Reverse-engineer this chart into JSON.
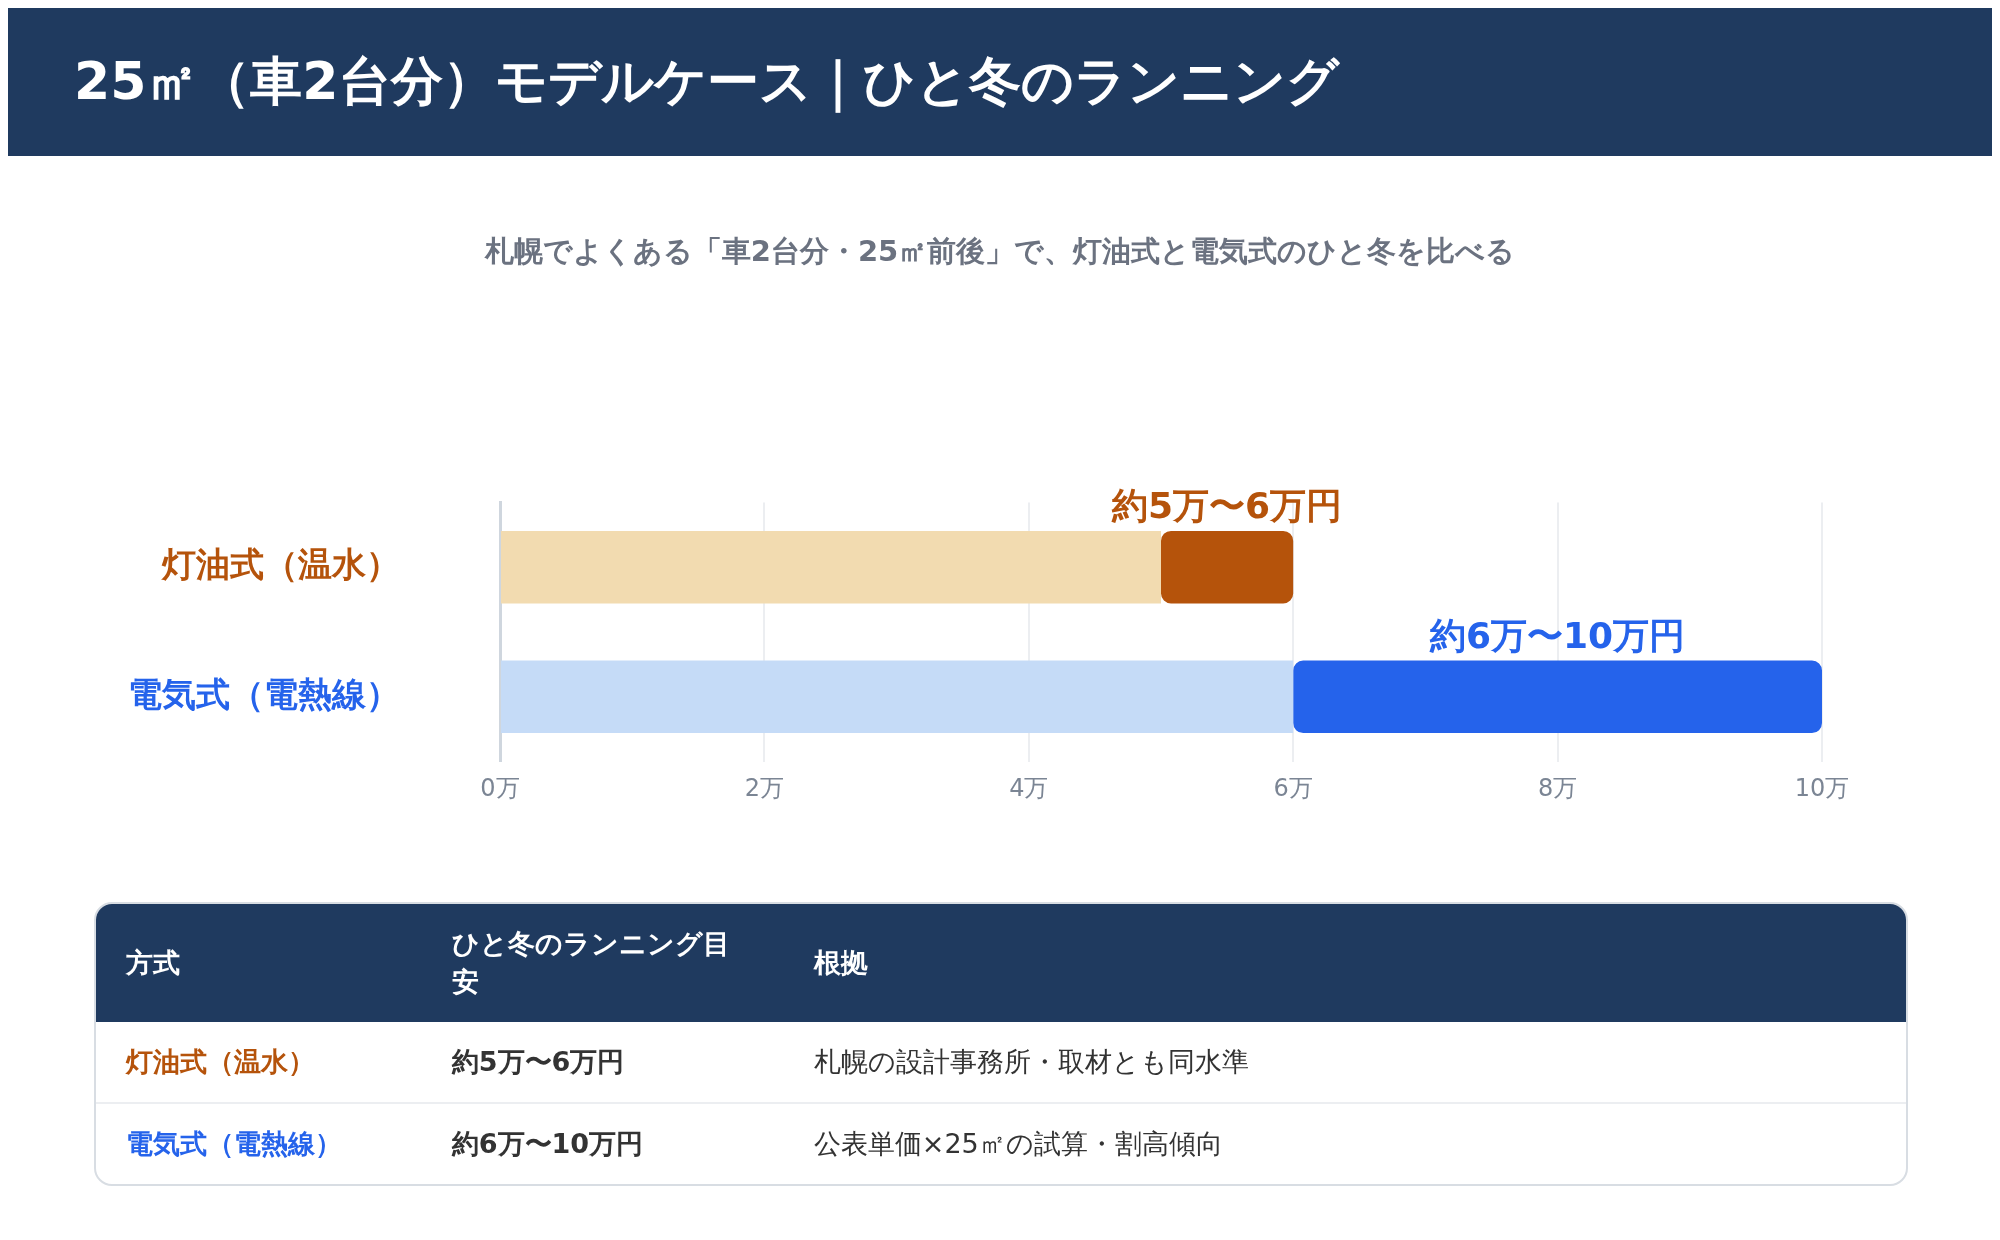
{
  "chart_data": {
    "type": "bar",
    "orientation": "horizontal",
    "stacked": true,
    "title": "25㎡（車2台分）モデルケース｜ひと冬のランニング",
    "subtitle": "札幌でよくある「車2台分・25㎡前後」で、灯油式と電気式のひと冬を比べる",
    "categories": [
      "灯油式（温水）",
      "電気式（電熱線）"
    ],
    "series": [
      {
        "values": [
          5,
          6
        ],
        "colors": [
          "#f2dbb0",
          "#c5dbf7"
        ]
      },
      {
        "values": [
          1,
          4
        ],
        "colors": [
          "#b5530b",
          "#2563eb"
        ],
        "value_labels": [
          "約5万〜6万円",
          "約6万〜10万円"
        ]
      }
    ],
    "xlim": [
      0,
      10
    ],
    "xticks": [
      {
        "value": 0,
        "label": "0万"
      },
      {
        "value": 2,
        "label": "2万"
      },
      {
        "value": 4,
        "label": "4万"
      },
      {
        "value": 6,
        "label": "6万"
      },
      {
        "value": 8,
        "label": "8万"
      },
      {
        "value": 10,
        "label": "10万"
      }
    ],
    "grid": "x",
    "legend": false,
    "annotations": [
      "方式",
      "ひと冬のランニング目安",
      "根拠",
      "灯油式（温水）",
      "約5万〜6万円",
      "札幌の設計事務所・取材とも同水準",
      "電気式（電熱線）",
      "約6万〜10万円",
      "公表単価×25㎡の試算・割高傾向"
    ]
  }
}
